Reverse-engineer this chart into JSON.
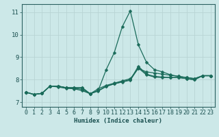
{
  "title": "",
  "xlabel": "Humidex (Indice chaleur)",
  "ylabel": "",
  "background_color": "#cce8e8",
  "grid_color": "#b8d4d4",
  "line_color": "#1a6b5a",
  "xlim": [
    -0.5,
    23.5
  ],
  "ylim": [
    6.8,
    11.35
  ],
  "yticks": [
    7,
    8,
    9,
    10,
    11
  ],
  "xticks": [
    0,
    1,
    2,
    3,
    4,
    5,
    6,
    7,
    8,
    9,
    10,
    11,
    12,
    13,
    14,
    15,
    16,
    17,
    18,
    19,
    20,
    21,
    22,
    23
  ],
  "series": [
    [
      7.45,
      7.35,
      7.4,
      7.72,
      7.72,
      7.65,
      7.65,
      7.65,
      7.38,
      7.52,
      8.45,
      9.2,
      10.35,
      11.05,
      9.55,
      8.78,
      8.45,
      8.35,
      8.22,
      8.15,
      8.1,
      8.05,
      8.18,
      8.18
    ],
    [
      7.45,
      7.35,
      7.4,
      7.72,
      7.72,
      7.65,
      7.65,
      7.65,
      7.38,
      7.6,
      7.75,
      7.85,
      7.95,
      8.05,
      8.5,
      8.35,
      8.3,
      8.25,
      8.2,
      8.15,
      8.1,
      8.05,
      8.18,
      8.18
    ],
    [
      7.45,
      7.35,
      7.4,
      7.72,
      7.68,
      7.62,
      7.6,
      7.52,
      7.38,
      7.5,
      7.7,
      7.82,
      7.9,
      7.98,
      8.52,
      8.22,
      8.12,
      8.1,
      8.1,
      8.1,
      8.05,
      8.0,
      8.18,
      8.18
    ],
    [
      7.45,
      7.35,
      7.4,
      7.72,
      7.72,
      7.65,
      7.62,
      7.58,
      7.38,
      7.52,
      7.72,
      7.82,
      7.92,
      8.0,
      8.6,
      8.25,
      8.15,
      8.12,
      8.1,
      8.1,
      8.05,
      8.0,
      8.18,
      8.18
    ]
  ],
  "marker": "D",
  "markersize": 2.5,
  "linewidth": 0.9,
  "xlabel_fontsize": 6.5,
  "tick_fontsize": 6,
  "xlabel_color": "#1a5050",
  "tick_color": "#1a5050"
}
